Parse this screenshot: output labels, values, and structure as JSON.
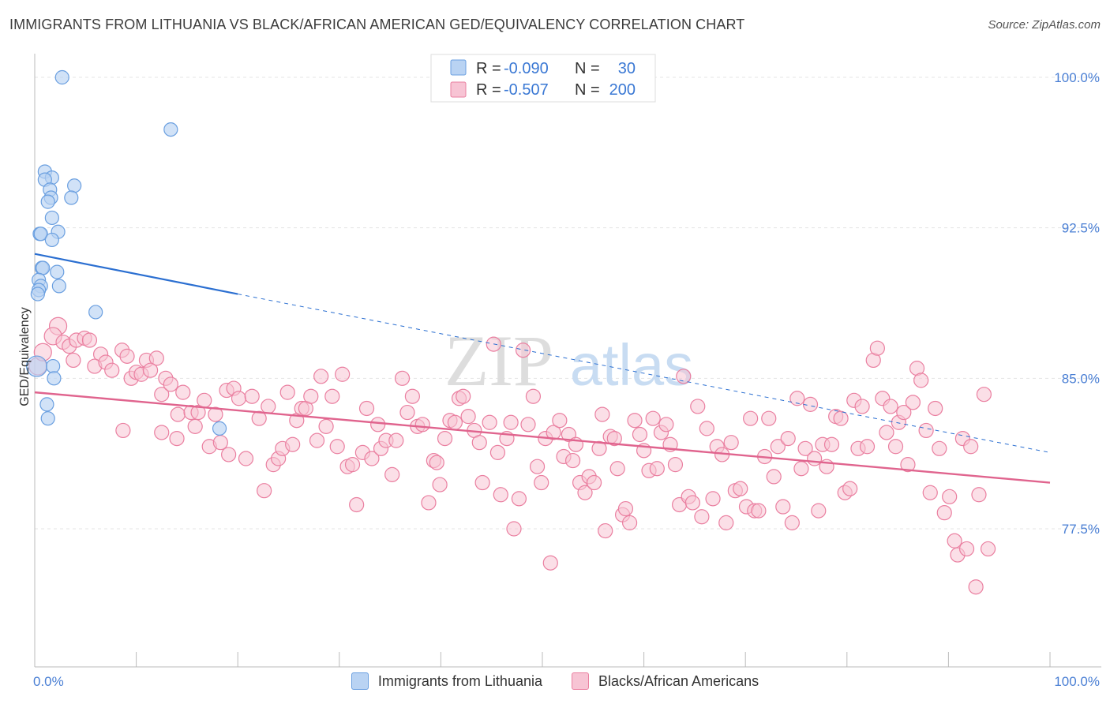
{
  "title": "IMMIGRANTS FROM LITHUANIA VS BLACK/AFRICAN AMERICAN GED/EQUIVALENCY CORRELATION CHART",
  "source": "Source: ZipAtlas.com",
  "watermark": {
    "zip": "ZIP",
    "atlas": "atlas"
  },
  "colors": {
    "blue_fill": "#b9d3f3",
    "blue_stroke": "#6a9fe0",
    "blue_line": "#2b6fd1",
    "pink_fill": "#f7c4d4",
    "pink_stroke": "#ea7fa0",
    "pink_line": "#e0648e",
    "axis_label": "#4a7fd4",
    "grid": "#e4e4e4"
  },
  "legend_box": {
    "rows": [
      {
        "r_label": "R =",
        "r_value": "-0.090",
        "n_label": "N =",
        "n_value": "30"
      },
      {
        "r_label": "R =",
        "r_value": "-0.507",
        "n_label": "N =",
        "n_value": "200"
      }
    ]
  },
  "chart_data": {
    "type": "scatter",
    "title": "IMMIGRANTS FROM LITHUANIA VS BLACK/AFRICAN AMERICAN GED/EQUIVALENCY CORRELATION CHART",
    "xlabel": "",
    "ylabel": "GED/Equivalency",
    "xlim": [
      0,
      100
    ],
    "ylim": [
      71.0,
      100.8
    ],
    "x_tick_labels": [
      "0.0%",
      "100.0%"
    ],
    "y_ticks": [
      77.5,
      85.0,
      92.5,
      100.0
    ],
    "y_tick_labels": [
      "77.5%",
      "85.0%",
      "92.5%",
      "100.0%"
    ],
    "grid": true,
    "legend_position": "bottom",
    "series": [
      {
        "name": "Immigrants from Lithuania",
        "color": "#b9d3f3",
        "r": -0.09,
        "n": 30,
        "trend": {
          "x0": 0,
          "y0": 91.2,
          "x_solid_end": 20,
          "y_solid_end": 89.2,
          "x1": 100,
          "y1": 81.3
        },
        "points": [
          [
            2.7,
            100.0
          ],
          [
            13.4,
            97.4
          ],
          [
            1.0,
            95.3
          ],
          [
            1.7,
            95.0
          ],
          [
            1.0,
            94.9
          ],
          [
            3.9,
            94.6
          ],
          [
            1.5,
            94.4
          ],
          [
            1.6,
            94.0
          ],
          [
            3.6,
            94.0
          ],
          [
            1.3,
            93.8
          ],
          [
            1.7,
            93.0
          ],
          [
            0.5,
            92.2
          ],
          [
            0.6,
            92.2
          ],
          [
            2.3,
            92.3
          ],
          [
            1.7,
            91.9
          ],
          [
            0.7,
            90.5
          ],
          [
            0.8,
            90.5
          ],
          [
            2.2,
            90.3
          ],
          [
            0.4,
            89.9
          ],
          [
            2.4,
            89.6
          ],
          [
            0.6,
            89.6
          ],
          [
            0.4,
            89.4
          ],
          [
            0.3,
            89.2
          ],
          [
            6.0,
            88.3
          ],
          [
            0.2,
            85.6
          ],
          [
            1.8,
            85.6
          ],
          [
            1.9,
            85.0
          ],
          [
            1.2,
            83.7
          ],
          [
            1.3,
            83.0
          ],
          [
            18.2,
            82.5
          ]
        ]
      },
      {
        "name": "Blacks/African Americans",
        "color": "#f7c4d4",
        "r": -0.507,
        "n": 200,
        "trend": {
          "x0": 0,
          "y0": 84.3,
          "x1": 100,
          "y1": 79.8
        },
        "points": [
          [
            0.3,
            85.6
          ],
          [
            0.8,
            86.3
          ],
          [
            2.3,
            87.6
          ],
          [
            1.8,
            87.1
          ],
          [
            2.8,
            86.8
          ],
          [
            3.4,
            86.6
          ],
          [
            4.1,
            86.9
          ],
          [
            4.9,
            87.0
          ],
          [
            5.4,
            86.9
          ],
          [
            6.5,
            86.2
          ],
          [
            3.8,
            85.9
          ],
          [
            5.9,
            85.6
          ],
          [
            7.0,
            85.8
          ],
          [
            7.6,
            85.4
          ],
          [
            8.6,
            86.4
          ],
          [
            9.1,
            86.1
          ],
          [
            9.5,
            85.0
          ],
          [
            10.0,
            85.3
          ],
          [
            10.5,
            85.2
          ],
          [
            11.0,
            85.9
          ],
          [
            12.0,
            86.0
          ],
          [
            11.4,
            85.4
          ],
          [
            12.5,
            84.2
          ],
          [
            12.9,
            85.0
          ],
          [
            13.4,
            84.7
          ],
          [
            14.1,
            83.2
          ],
          [
            14.6,
            84.3
          ],
          [
            8.7,
            82.4
          ],
          [
            12.5,
            82.3
          ],
          [
            14.0,
            82.0
          ],
          [
            15.4,
            83.3
          ],
          [
            15.8,
            82.6
          ],
          [
            16.1,
            83.3
          ],
          [
            16.7,
            83.9
          ],
          [
            17.2,
            81.6
          ],
          [
            17.8,
            83.2
          ],
          [
            18.3,
            81.8
          ],
          [
            18.9,
            84.4
          ],
          [
            19.1,
            81.2
          ],
          [
            19.6,
            84.5
          ],
          [
            20.1,
            84.0
          ],
          [
            20.8,
            81.0
          ],
          [
            21.4,
            84.1
          ],
          [
            22.1,
            83.0
          ],
          [
            22.6,
            79.4
          ],
          [
            23.0,
            83.6
          ],
          [
            23.5,
            80.7
          ],
          [
            24.0,
            81.0
          ],
          [
            24.4,
            81.5
          ],
          [
            24.9,
            84.3
          ],
          [
            25.4,
            81.7
          ],
          [
            25.8,
            82.9
          ],
          [
            26.3,
            83.5
          ],
          [
            26.7,
            83.5
          ],
          [
            27.2,
            84.1
          ],
          [
            27.8,
            81.9
          ],
          [
            28.2,
            85.1
          ],
          [
            28.7,
            82.6
          ],
          [
            29.3,
            84.1
          ],
          [
            29.8,
            81.6
          ],
          [
            30.3,
            85.2
          ],
          [
            30.8,
            80.6
          ],
          [
            31.3,
            80.7
          ],
          [
            31.7,
            78.7
          ],
          [
            32.3,
            81.3
          ],
          [
            32.7,
            83.5
          ],
          [
            33.2,
            81.0
          ],
          [
            33.8,
            82.7
          ],
          [
            34.1,
            81.5
          ],
          [
            34.6,
            81.9
          ],
          [
            35.2,
            80.2
          ],
          [
            35.6,
            81.9
          ],
          [
            36.2,
            85.0
          ],
          [
            36.7,
            83.3
          ],
          [
            37.2,
            84.1
          ],
          [
            37.7,
            82.6
          ],
          [
            38.2,
            82.7
          ],
          [
            38.8,
            78.8
          ],
          [
            39.3,
            80.9
          ],
          [
            39.6,
            80.8
          ],
          [
            39.9,
            79.7
          ],
          [
            40.4,
            82.0
          ],
          [
            40.9,
            82.9
          ],
          [
            41.4,
            82.8
          ],
          [
            41.8,
            84.0
          ],
          [
            42.2,
            84.1
          ],
          [
            42.7,
            83.1
          ],
          [
            43.3,
            82.4
          ],
          [
            43.8,
            81.8
          ],
          [
            44.1,
            79.8
          ],
          [
            44.8,
            82.8
          ],
          [
            45.2,
            86.7
          ],
          [
            45.6,
            81.3
          ],
          [
            45.9,
            79.2
          ],
          [
            46.5,
            82.0
          ],
          [
            46.9,
            82.8
          ],
          [
            47.2,
            77.5
          ],
          [
            47.7,
            79.0
          ],
          [
            48.1,
            86.4
          ],
          [
            48.6,
            82.7
          ],
          [
            49.1,
            84.1
          ],
          [
            49.5,
            80.6
          ],
          [
            49.9,
            79.8
          ],
          [
            50.3,
            82.0
          ],
          [
            50.8,
            75.8
          ],
          [
            51.1,
            82.3
          ],
          [
            51.7,
            82.9
          ],
          [
            52.1,
            81.1
          ],
          [
            52.6,
            82.2
          ],
          [
            53.0,
            80.9
          ],
          [
            53.3,
            81.7
          ],
          [
            53.7,
            79.8
          ],
          [
            54.2,
            79.3
          ],
          [
            54.6,
            80.1
          ],
          [
            55.1,
            79.8
          ],
          [
            55.6,
            81.5
          ],
          [
            55.9,
            83.2
          ],
          [
            56.2,
            77.4
          ],
          [
            56.7,
            82.1
          ],
          [
            57.1,
            82.0
          ],
          [
            57.4,
            80.5
          ],
          [
            57.9,
            78.2
          ],
          [
            58.2,
            78.5
          ],
          [
            58.6,
            77.8
          ],
          [
            59.1,
            82.9
          ],
          [
            59.6,
            82.2
          ],
          [
            60.0,
            81.4
          ],
          [
            60.5,
            80.4
          ],
          [
            60.9,
            83.0
          ],
          [
            61.3,
            80.5
          ],
          [
            61.7,
            82.3
          ],
          [
            62.2,
            82.7
          ],
          [
            62.6,
            81.7
          ],
          [
            63.1,
            80.7
          ],
          [
            63.5,
            78.7
          ],
          [
            63.9,
            85.1
          ],
          [
            64.4,
            79.1
          ],
          [
            64.8,
            78.8
          ],
          [
            65.3,
            83.6
          ],
          [
            65.7,
            78.1
          ],
          [
            66.2,
            82.5
          ],
          [
            66.8,
            79.0
          ],
          [
            67.2,
            81.6
          ],
          [
            67.7,
            81.2
          ],
          [
            68.1,
            77.8
          ],
          [
            68.6,
            81.8
          ],
          [
            69.0,
            79.4
          ],
          [
            69.5,
            79.5
          ],
          [
            70.1,
            78.6
          ],
          [
            70.5,
            83.0
          ],
          [
            70.9,
            78.4
          ],
          [
            71.3,
            78.4
          ],
          [
            71.9,
            81.1
          ],
          [
            72.3,
            83.0
          ],
          [
            72.8,
            80.1
          ],
          [
            73.2,
            81.6
          ],
          [
            73.7,
            78.6
          ],
          [
            74.2,
            82.0
          ],
          [
            74.6,
            77.8
          ],
          [
            75.1,
            84.0
          ],
          [
            75.5,
            80.5
          ],
          [
            75.9,
            81.5
          ],
          [
            76.4,
            83.7
          ],
          [
            76.8,
            81.0
          ],
          [
            77.2,
            78.4
          ],
          [
            77.6,
            81.7
          ],
          [
            78.0,
            80.6
          ],
          [
            78.5,
            81.7
          ],
          [
            78.9,
            83.1
          ],
          [
            79.4,
            83.0
          ],
          [
            79.8,
            79.3
          ],
          [
            80.3,
            79.5
          ],
          [
            80.7,
            83.9
          ],
          [
            81.1,
            81.5
          ],
          [
            81.5,
            83.6
          ],
          [
            82.0,
            81.6
          ],
          [
            82.6,
            85.9
          ],
          [
            83.0,
            86.5
          ],
          [
            83.5,
            84.0
          ],
          [
            83.9,
            82.3
          ],
          [
            84.3,
            83.6
          ],
          [
            84.8,
            81.6
          ],
          [
            85.1,
            82.8
          ],
          [
            85.6,
            83.3
          ],
          [
            86.0,
            80.7
          ],
          [
            86.5,
            83.8
          ],
          [
            86.9,
            85.5
          ],
          [
            87.3,
            84.9
          ],
          [
            87.8,
            82.4
          ],
          [
            88.2,
            79.3
          ],
          [
            88.7,
            83.5
          ],
          [
            89.1,
            81.5
          ],
          [
            89.6,
            78.3
          ],
          [
            90.1,
            79.1
          ],
          [
            90.6,
            76.9
          ],
          [
            90.9,
            76.2
          ],
          [
            91.4,
            82.0
          ],
          [
            91.8,
            76.5
          ],
          [
            92.2,
            81.6
          ],
          [
            92.7,
            74.6
          ],
          [
            93.0,
            79.2
          ],
          [
            93.5,
            84.2
          ],
          [
            93.9,
            76.5
          ]
        ]
      }
    ]
  },
  "bottom_legend": {
    "items": [
      {
        "label": "Immigrants from Lithuania"
      },
      {
        "label": "Blacks/African Americans"
      }
    ]
  }
}
